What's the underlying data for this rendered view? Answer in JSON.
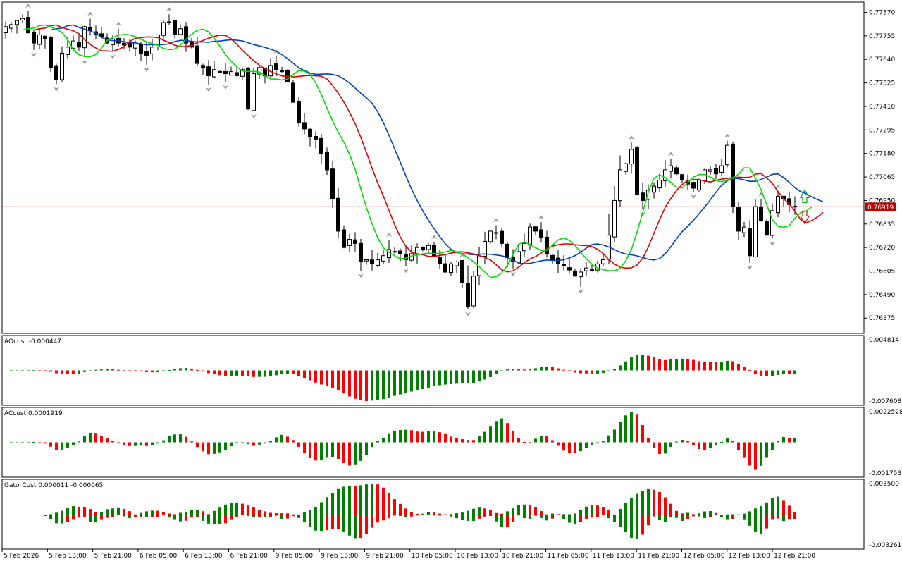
{
  "chart_data": {
    "type": "candlestick",
    "platform_style": "MetaTrader",
    "colors": {
      "background": "#ffffff",
      "axis_frame": "#000000",
      "bull_candle_body": "#ffffff",
      "bear_candle_body": "#000000",
      "candle_outline": "#000000",
      "fractal_arrow": "#9a9a9a",
      "alligator_jaw": "#0040c0",
      "alligator_teeth": "#e00000",
      "alligator_lips": "#00dd00",
      "price_line": "#c00000",
      "histogram_up": "#008000",
      "histogram_down": "#ff0000",
      "signal_up_arrow": "#00b000",
      "signal_down_arrow": "#e00000"
    },
    "main_panel": {
      "price_ticks": [
        "0.77870",
        "0.77755",
        "0.77640",
        "0.77525",
        "0.77410",
        "0.77295",
        "0.77180",
        "0.77065",
        "0.76950",
        "0.76835",
        "0.76720",
        "0.76605",
        "0.76490",
        "0.76375"
      ],
      "current_price_label": "0.76919",
      "ylim": [
        0.763,
        0.7792
      ]
    },
    "x_axis_labels": [
      "5 Feb 2026",
      "5 Feb 13:00",
      "5 Feb 21:00",
      "6 Feb 05:00",
      "6 Feb 13:00",
      "6 Feb 21:00",
      "9 Feb 05:00",
      "9 Feb 13:00",
      "9 Feb 21:00",
      "10 Feb 05:00",
      "10 Feb 13:00",
      "10 Feb 21:00",
      "11 Feb 05:00",
      "11 Feb 13:00",
      "11 Feb 21:00",
      "12 Feb 05:00",
      "12 Feb 13:00",
      "12 Feb 21:00"
    ],
    "candles_close": [
      0.778,
      0.7781,
      0.7783,
      0.7784,
      0.7777,
      0.7772,
      0.7776,
      0.7774,
      0.776,
      0.7754,
      0.7767,
      0.777,
      0.7773,
      0.777,
      0.778,
      0.7778,
      0.7776,
      0.7775,
      0.7772,
      0.7774,
      0.7772,
      0.7771,
      0.777,
      0.7772,
      0.7767,
      0.7766,
      0.777,
      0.7776,
      0.7782,
      0.7782,
      0.7776,
      0.7779,
      0.7772,
      0.777,
      0.7762,
      0.776,
      0.7756,
      0.7759,
      0.7758,
      0.7757,
      0.7758,
      0.7756,
      0.7759,
      0.774,
      0.7757,
      0.776,
      0.7756,
      0.7761,
      0.7759,
      0.7758,
      0.7753,
      0.7743,
      0.7733,
      0.773,
      0.7726,
      0.7725,
      0.7718,
      0.771,
      0.7696,
      0.768,
      0.7672,
      0.7676,
      0.7674,
      0.7665,
      0.7666,
      0.7664,
      0.7666,
      0.7668,
      0.7671,
      0.767,
      0.7669,
      0.7666,
      0.7669,
      0.7672,
      0.7671,
      0.7673,
      0.7668,
      0.7664,
      0.766,
      0.7664,
      0.7665,
      0.7655,
      0.7643,
      0.7658,
      0.7668,
      0.7675,
      0.768,
      0.7679,
      0.7674,
      0.7667,
      0.7665,
      0.767,
      0.7674,
      0.7682,
      0.768,
      0.7677,
      0.7669,
      0.7666,
      0.7664,
      0.7663,
      0.7661,
      0.7658,
      0.766,
      0.7662,
      0.7661,
      0.7664,
      0.7666,
      0.7678,
      0.7695,
      0.771,
      0.7713,
      0.772,
      0.7698,
      0.7695,
      0.77,
      0.7702,
      0.7705,
      0.771,
      0.7712,
      0.7708,
      0.7705,
      0.7703,
      0.7701,
      0.7705,
      0.771,
      0.771,
      0.7708,
      0.7712,
      0.7722,
      0.7692,
      0.768,
      0.7682,
      0.7668,
      0.7692,
      0.7685,
      0.7678,
      0.769,
      0.7697,
      0.7696,
      0.7693,
      0.7692
    ]
  },
  "panels": [
    {
      "label": "AOcust -0.000447",
      "scale_top": "0.004814",
      "scale_bottom": "-0.007608"
    },
    {
      "label": "ACcust 0.0001919",
      "scale_top": "0.0022528",
      "scale_bottom": "-0.0017536"
    },
    {
      "label": "GatorCust 0.000011 -0.000065",
      "scale_top": "0.003500",
      "scale_bottom": "-0.003261"
    }
  ]
}
